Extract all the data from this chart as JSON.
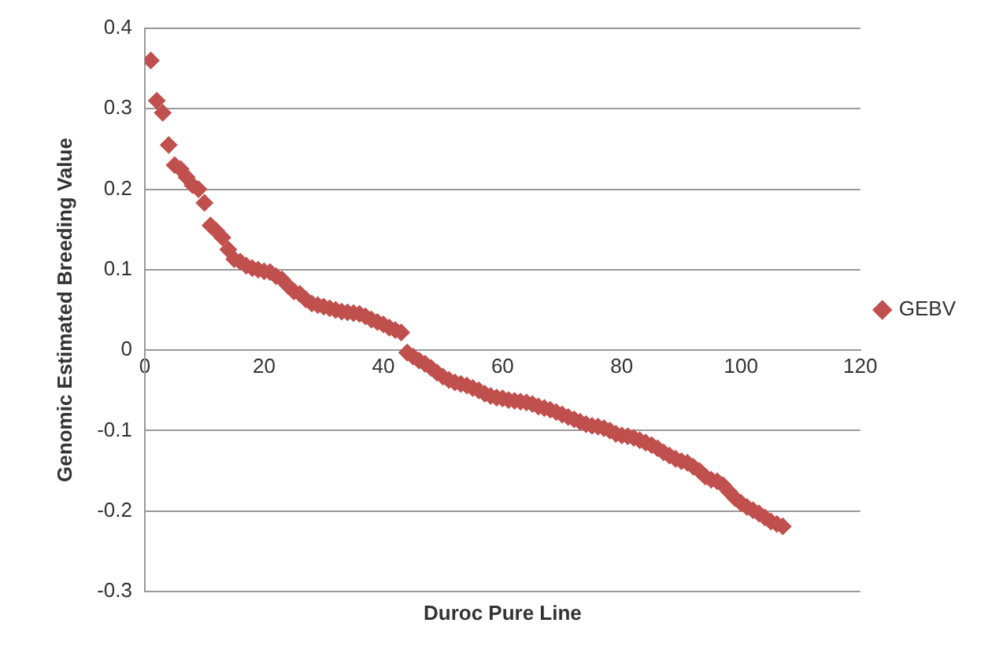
{
  "chart_data": {
    "type": "scatter",
    "xlabel": "Duroc Pure Line",
    "ylabel": "Genomic Estimated Breeding Value",
    "xlim": [
      0,
      120
    ],
    "xticks": [
      0,
      20,
      40,
      60,
      80,
      100,
      120
    ],
    "ylim": [
      -0.3,
      0.4
    ],
    "yticks": [
      -0.3,
      -0.2,
      -0.1,
      0,
      0.1,
      0.2,
      0.3,
      0.4
    ],
    "grid": "y",
    "legend": "right",
    "marker": "diamond",
    "series": [
      {
        "name": "GEBV",
        "color": "#c0504d",
        "x": [
          1,
          2,
          3,
          4,
          5,
          6,
          7,
          8,
          9,
          10,
          11,
          12,
          13,
          14,
          15,
          16,
          17,
          18,
          19,
          20,
          21,
          22,
          23,
          24,
          25,
          26,
          27,
          28,
          29,
          30,
          31,
          32,
          33,
          34,
          35,
          36,
          37,
          38,
          39,
          40,
          41,
          42,
          43,
          44,
          45,
          46,
          47,
          48,
          49,
          50,
          51,
          52,
          53,
          54,
          55,
          56,
          57,
          58,
          59,
          60,
          61,
          62,
          63,
          64,
          65,
          66,
          67,
          68,
          69,
          70,
          71,
          72,
          73,
          74,
          75,
          76,
          77,
          78,
          79,
          80,
          81,
          82,
          83,
          84,
          85,
          86,
          87,
          88,
          89,
          90,
          91,
          92,
          93,
          94,
          95,
          96,
          97,
          98,
          99,
          100,
          101,
          102,
          103,
          104,
          105,
          106,
          107
        ],
        "values": [
          0.36,
          0.31,
          0.295,
          0.255,
          0.23,
          0.225,
          0.215,
          0.205,
          0.2,
          0.183,
          0.155,
          0.148,
          0.14,
          0.125,
          0.113,
          0.11,
          0.105,
          0.102,
          0.1,
          0.098,
          0.097,
          0.092,
          0.088,
          0.08,
          0.073,
          0.07,
          0.063,
          0.058,
          0.056,
          0.054,
          0.052,
          0.05,
          0.048,
          0.047,
          0.046,
          0.045,
          0.042,
          0.038,
          0.035,
          0.032,
          0.028,
          0.025,
          0.022,
          -0.003,
          -0.008,
          -0.013,
          -0.017,
          -0.022,
          -0.028,
          -0.033,
          -0.037,
          -0.04,
          -0.042,
          -0.044,
          -0.047,
          -0.05,
          -0.054,
          -0.057,
          -0.059,
          -0.06,
          -0.062,
          -0.063,
          -0.064,
          -0.065,
          -0.067,
          -0.07,
          -0.072,
          -0.074,
          -0.077,
          -0.08,
          -0.083,
          -0.086,
          -0.089,
          -0.092,
          -0.094,
          -0.095,
          -0.097,
          -0.1,
          -0.104,
          -0.106,
          -0.107,
          -0.109,
          -0.112,
          -0.115,
          -0.118,
          -0.122,
          -0.127,
          -0.131,
          -0.135,
          -0.138,
          -0.14,
          -0.145,
          -0.15,
          -0.157,
          -0.161,
          -0.163,
          -0.168,
          -0.176,
          -0.184,
          -0.19,
          -0.195,
          -0.199,
          -0.203,
          -0.208,
          -0.213,
          -0.216,
          -0.219
        ]
      }
    ]
  }
}
